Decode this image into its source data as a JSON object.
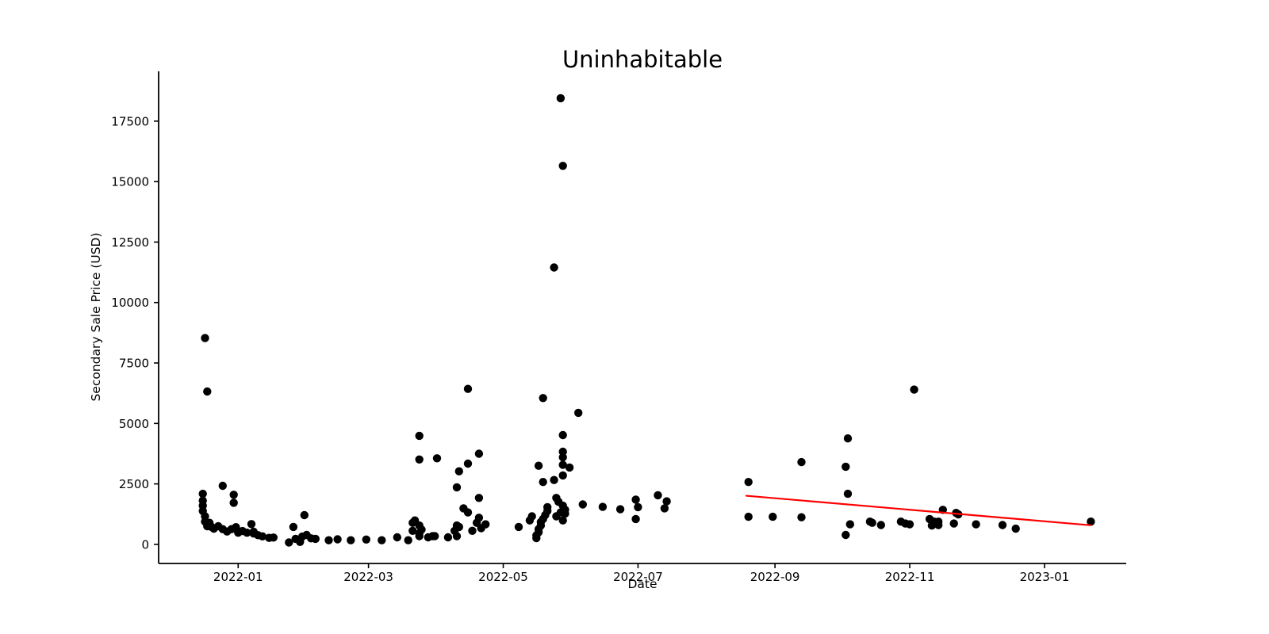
{
  "chart_data": {
    "type": "scatter",
    "title": "Uninhabitable",
    "xlabel": "Date",
    "ylabel": "Secondary Sale Price (USD)",
    "point_color": "#000000",
    "grid": false,
    "legend": null,
    "xlim": [
      "2021-11-26",
      "2023-02-07"
    ],
    "ylim": [
      -790,
      19560
    ],
    "x_ticks": [
      {
        "date": "2022-01-01",
        "label": "2022-01"
      },
      {
        "date": "2022-03-01",
        "label": "2022-03"
      },
      {
        "date": "2022-05-01",
        "label": "2022-05"
      },
      {
        "date": "2022-07-01",
        "label": "2022-07"
      },
      {
        "date": "2022-09-01",
        "label": "2022-09"
      },
      {
        "date": "2022-11-01",
        "label": "2022-11"
      },
      {
        "date": "2023-01-01",
        "label": "2023-01"
      }
    ],
    "y_ticks": [
      {
        "value": 0,
        "label": "0"
      },
      {
        "value": 2500,
        "label": "2500"
      },
      {
        "value": 5000,
        "label": "5000"
      },
      {
        "value": 7500,
        "label": "7500"
      },
      {
        "value": 10000,
        "label": "10000"
      },
      {
        "value": 12500,
        "label": "12500"
      },
      {
        "value": 15000,
        "label": "15000"
      },
      {
        "value": 17500,
        "label": "17500"
      }
    ],
    "points": [
      [
        "2021-12-16",
        2090
      ],
      [
        "2021-12-16",
        1810
      ],
      [
        "2021-12-16",
        1600
      ],
      [
        "2021-12-16",
        1380
      ],
      [
        "2021-12-17",
        1160
      ],
      [
        "2021-12-17",
        940
      ],
      [
        "2021-12-17",
        8530
      ],
      [
        "2021-12-18",
        6320
      ],
      [
        "2021-12-18",
        750
      ],
      [
        "2021-12-19",
        890
      ],
      [
        "2021-12-20",
        720
      ],
      [
        "2021-12-21",
        650
      ],
      [
        "2021-12-23",
        750
      ],
      [
        "2021-12-25",
        2420
      ],
      [
        "2021-12-25",
        630
      ],
      [
        "2021-12-27",
        530
      ],
      [
        "2021-12-29",
        630
      ],
      [
        "2021-12-30",
        2050
      ],
      [
        "2021-12-30",
        1720
      ],
      [
        "2021-12-31",
        710
      ],
      [
        "2022-01-01",
        480
      ],
      [
        "2022-01-03",
        550
      ],
      [
        "2022-01-05",
        480
      ],
      [
        "2022-01-07",
        840
      ],
      [
        "2022-01-08",
        520
      ],
      [
        "2022-01-08",
        450
      ],
      [
        "2022-01-10",
        380
      ],
      [
        "2022-01-12",
        330
      ],
      [
        "2022-01-15",
        270
      ],
      [
        "2022-01-17",
        280
      ],
      [
        "2022-01-24",
        80
      ],
      [
        "2022-01-26",
        720
      ],
      [
        "2022-01-27",
        230
      ],
      [
        "2022-01-29",
        100
      ],
      [
        "2022-01-30",
        320
      ],
      [
        "2022-01-31",
        1210
      ],
      [
        "2022-02-01",
        390
      ],
      [
        "2022-02-03",
        250
      ],
      [
        "2022-02-05",
        230
      ],
      [
        "2022-02-11",
        170
      ],
      [
        "2022-02-15",
        210
      ],
      [
        "2022-02-21",
        170
      ],
      [
        "2022-02-28",
        200
      ],
      [
        "2022-03-07",
        170
      ],
      [
        "2022-03-14",
        290
      ],
      [
        "2022-03-19",
        170
      ],
      [
        "2022-03-21",
        560
      ],
      [
        "2022-03-21",
        890
      ],
      [
        "2022-03-22",
        990
      ],
      [
        "2022-03-24",
        780
      ],
      [
        "2022-03-24",
        450
      ],
      [
        "2022-03-24",
        340
      ],
      [
        "2022-03-24",
        4490
      ],
      [
        "2022-03-24",
        3510
      ],
      [
        "2022-03-25",
        610
      ],
      [
        "2022-03-28",
        290
      ],
      [
        "2022-03-30",
        340
      ],
      [
        "2022-03-31",
        340
      ],
      [
        "2022-04-01",
        3560
      ],
      [
        "2022-04-06",
        290
      ],
      [
        "2022-04-09",
        560
      ],
      [
        "2022-04-10",
        340
      ],
      [
        "2022-04-10",
        780
      ],
      [
        "2022-04-10",
        2360
      ],
      [
        "2022-04-11",
        720
      ],
      [
        "2022-04-11",
        3020
      ],
      [
        "2022-04-13",
        1490
      ],
      [
        "2022-04-15",
        1320
      ],
      [
        "2022-04-15",
        3340
      ],
      [
        "2022-04-15",
        6430
      ],
      [
        "2022-04-17",
        560
      ],
      [
        "2022-04-19",
        890
      ],
      [
        "2022-04-20",
        1100
      ],
      [
        "2022-04-20",
        1920
      ],
      [
        "2022-04-20",
        3750
      ],
      [
        "2022-04-21",
        670
      ],
      [
        "2022-04-23",
        830
      ],
      [
        "2022-05-08",
        720
      ],
      [
        "2022-05-13",
        990
      ],
      [
        "2022-05-14",
        1160
      ],
      [
        "2022-05-16",
        260
      ],
      [
        "2022-05-16",
        370
      ],
      [
        "2022-05-17",
        500
      ],
      [
        "2022-05-17",
        630
      ],
      [
        "2022-05-17",
        3250
      ],
      [
        "2022-05-18",
        780
      ],
      [
        "2022-05-18",
        920
      ],
      [
        "2022-05-19",
        1050
      ],
      [
        "2022-05-19",
        2580
      ],
      [
        "2022-05-19",
        6050
      ],
      [
        "2022-05-20",
        1210
      ],
      [
        "2022-05-21",
        1380
      ],
      [
        "2022-05-21",
        1540
      ],
      [
        "2022-05-24",
        2660
      ],
      [
        "2022-05-24",
        11450
      ],
      [
        "2022-05-25",
        1920
      ],
      [
        "2022-05-25",
        1160
      ],
      [
        "2022-05-26",
        1760
      ],
      [
        "2022-05-27",
        1320
      ],
      [
        "2022-05-27",
        18450
      ],
      [
        "2022-05-28",
        15650
      ],
      [
        "2022-05-28",
        4520
      ],
      [
        "2022-05-28",
        3830
      ],
      [
        "2022-05-28",
        3600
      ],
      [
        "2022-05-28",
        3290
      ],
      [
        "2022-05-28",
        2850
      ],
      [
        "2022-05-28",
        1600
      ],
      [
        "2022-05-28",
        990
      ],
      [
        "2022-05-29",
        1430
      ],
      [
        "2022-05-29",
        1270
      ],
      [
        "2022-05-31",
        3180
      ],
      [
        "2022-06-04",
        5440
      ],
      [
        "2022-06-06",
        1650
      ],
      [
        "2022-06-15",
        1550
      ],
      [
        "2022-06-23",
        1450
      ],
      [
        "2022-06-30",
        1050
      ],
      [
        "2022-06-30",
        1850
      ],
      [
        "2022-07-01",
        1540
      ],
      [
        "2022-07-10",
        2030
      ],
      [
        "2022-07-13",
        1490
      ],
      [
        "2022-07-14",
        1780
      ],
      [
        "2022-08-20",
        2580
      ],
      [
        "2022-08-20",
        1140
      ],
      [
        "2022-08-31",
        1140
      ],
      [
        "2022-09-13",
        3400
      ],
      [
        "2022-09-13",
        1120
      ],
      [
        "2022-10-03",
        3210
      ],
      [
        "2022-10-03",
        390
      ],
      [
        "2022-10-04",
        4380
      ],
      [
        "2022-10-04",
        2090
      ],
      [
        "2022-10-05",
        830
      ],
      [
        "2022-10-14",
        940
      ],
      [
        "2022-10-15",
        890
      ],
      [
        "2022-10-19",
        800
      ],
      [
        "2022-10-28",
        940
      ],
      [
        "2022-10-30",
        860
      ],
      [
        "2022-11-01",
        830
      ],
      [
        "2022-11-03",
        6400
      ],
      [
        "2022-11-10",
        1050
      ],
      [
        "2022-11-11",
        780
      ],
      [
        "2022-11-12",
        940
      ],
      [
        "2022-11-14",
        940
      ],
      [
        "2022-11-14",
        800
      ],
      [
        "2022-11-16",
        1430
      ],
      [
        "2022-11-21",
        860
      ],
      [
        "2022-11-22",
        1300
      ],
      [
        "2022-11-23",
        1240
      ],
      [
        "2022-12-01",
        830
      ],
      [
        "2022-12-13",
        800
      ],
      [
        "2022-12-19",
        650
      ],
      [
        "2023-01-22",
        940
      ]
    ],
    "trend_line": {
      "color": "#ff0000",
      "start_date": "2022-08-19",
      "start_value": 2010,
      "end_date": "2023-01-22",
      "end_value": 790
    }
  }
}
